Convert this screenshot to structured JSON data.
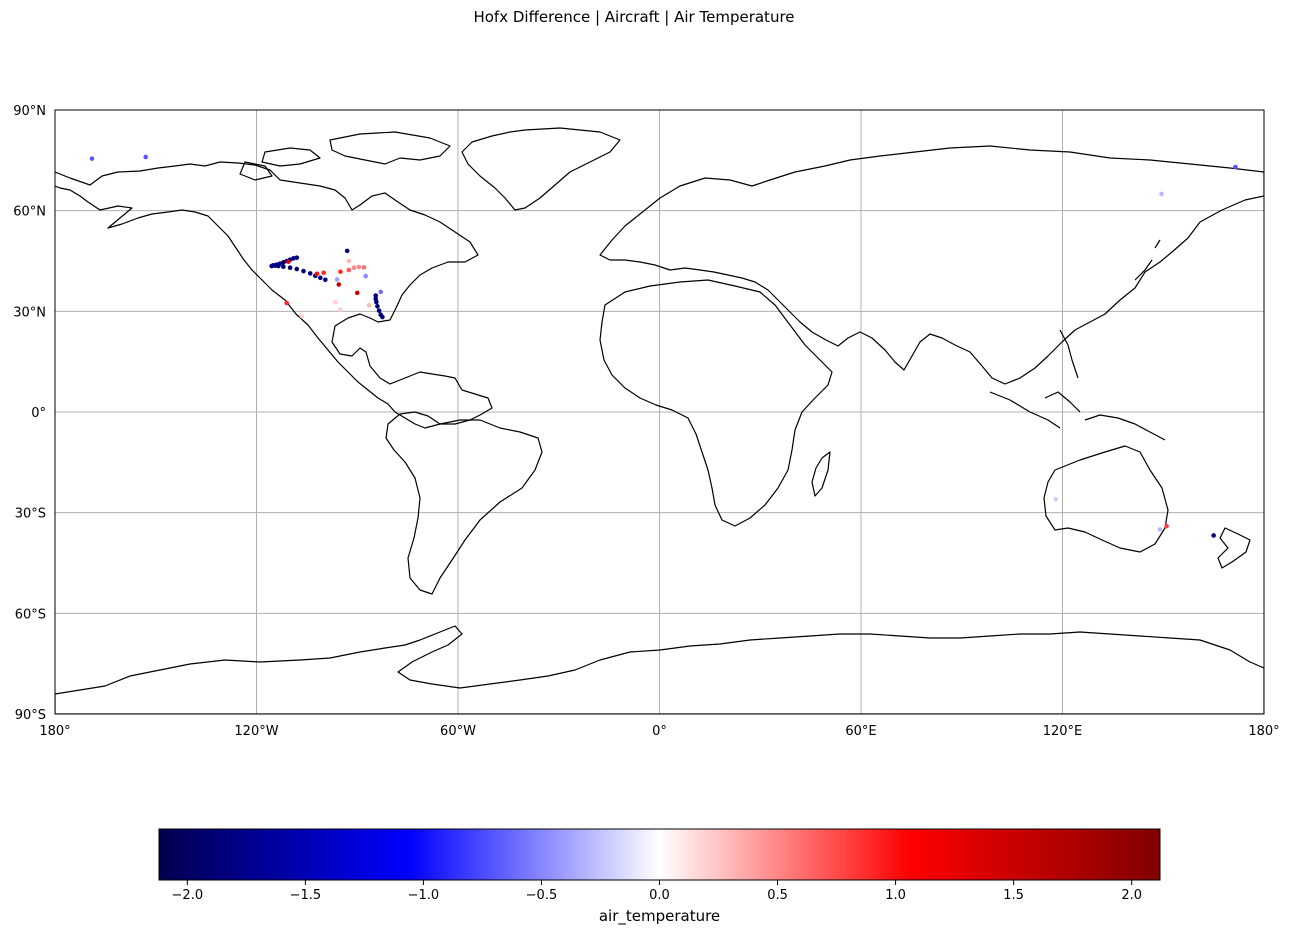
{
  "chart_data": {
    "type": "scatter",
    "title": "Hofx Difference | Aircraft | Air Temperature",
    "projection": "PlateCarree",
    "xlim": [
      -180,
      180
    ],
    "ylim": [
      -90,
      90
    ],
    "grid": true,
    "x_ticks": [
      {
        "value": -180,
        "label": "180°"
      },
      {
        "value": -120,
        "label": "120°W"
      },
      {
        "value": -60,
        "label": "60°W"
      },
      {
        "value": 0,
        "label": "0°"
      },
      {
        "value": 60,
        "label": "60°E"
      },
      {
        "value": 120,
        "label": "120°E"
      },
      {
        "value": 180,
        "label": "180°"
      }
    ],
    "y_ticks": [
      {
        "value": 90,
        "label": "90°N"
      },
      {
        "value": 60,
        "label": "60°N"
      },
      {
        "value": 30,
        "label": "30°N"
      },
      {
        "value": 0,
        "label": "0°"
      },
      {
        "value": -30,
        "label": "30°S"
      },
      {
        "value": -60,
        "label": "60°S"
      },
      {
        "value": -90,
        "label": "90°S"
      }
    ],
    "colorbar": {
      "label": "air_temperature",
      "colormap": "seismic",
      "vmin": -2.12,
      "vmax": 2.12,
      "ticks": [
        {
          "value": -2.0,
          "label": "−2.0"
        },
        {
          "value": -1.5,
          "label": "−1.5"
        },
        {
          "value": -1.0,
          "label": "−1.0"
        },
        {
          "value": -0.5,
          "label": "−0.5"
        },
        {
          "value": 0.0,
          "label": "0.0"
        },
        {
          "value": 0.5,
          "label": "0.5"
        },
        {
          "value": 1.0,
          "label": "1.0"
        },
        {
          "value": 1.5,
          "label": "1.5"
        },
        {
          "value": 2.0,
          "label": "2.0"
        }
      ]
    },
    "points": [
      {
        "lon": -169,
        "lat": 75.5,
        "v": -0.7
      },
      {
        "lon": -153,
        "lat": 76,
        "v": -0.7
      },
      {
        "lon": -115.5,
        "lat": 43.5,
        "v": -1.8
      },
      {
        "lon": -115,
        "lat": 43.7,
        "v": -1.9
      },
      {
        "lon": -114.5,
        "lat": 43.6,
        "v": -1.7
      },
      {
        "lon": -114,
        "lat": 43.9,
        "v": -1.8
      },
      {
        "lon": -113.5,
        "lat": 43.5,
        "v": -1.9
      },
      {
        "lon": -113,
        "lat": 44.2,
        "v": -1.8
      },
      {
        "lon": -112,
        "lat": 44.6,
        "v": -1.9
      },
      {
        "lon": -111,
        "lat": 45.0,
        "v": -1.7
      },
      {
        "lon": -110,
        "lat": 45.4,
        "v": -1.8
      },
      {
        "lon": -109,
        "lat": 45.8,
        "v": -1.9
      },
      {
        "lon": -108,
        "lat": 46.0,
        "v": -1.8
      },
      {
        "lon": -110.5,
        "lat": 44.8,
        "v": 1.3
      },
      {
        "lon": -112,
        "lat": 43.3,
        "v": -1.9
      },
      {
        "lon": -110,
        "lat": 43.0,
        "v": -1.9
      },
      {
        "lon": -108,
        "lat": 42.6,
        "v": -1.9
      },
      {
        "lon": -106,
        "lat": 42.0,
        "v": -1.9
      },
      {
        "lon": -104,
        "lat": 41.3,
        "v": -1.8
      },
      {
        "lon": -102.5,
        "lat": 40.6,
        "v": -1.9
      },
      {
        "lon": -101,
        "lat": 40.0,
        "v": -1.8
      },
      {
        "lon": -99.5,
        "lat": 39.4,
        "v": -1.9
      },
      {
        "lon": -102,
        "lat": 41.2,
        "v": 1.0
      },
      {
        "lon": -100,
        "lat": 41.5,
        "v": 0.9
      },
      {
        "lon": -95,
        "lat": 41.8,
        "v": 0.9
      },
      {
        "lon": -95.5,
        "lat": 38.0,
        "v": 1.5
      },
      {
        "lon": -96,
        "lat": 39.5,
        "v": -0.4
      },
      {
        "lon": -93,
        "lat": 48.0,
        "v": -1.9
      },
      {
        "lon": -92.5,
        "lat": 42.3,
        "v": 0.7
      },
      {
        "lon": -91,
        "lat": 43.0,
        "v": 0.5
      },
      {
        "lon": -89.5,
        "lat": 43.2,
        "v": 0.5
      },
      {
        "lon": -88,
        "lat": 43.1,
        "v": 0.6
      },
      {
        "lon": -92.5,
        "lat": 45.0,
        "v": 0.3
      },
      {
        "lon": -87.5,
        "lat": 40.5,
        "v": -0.5
      },
      {
        "lon": -111,
        "lat": 32.5,
        "v": 0.9
      },
      {
        "lon": -106.5,
        "lat": 28.5,
        "v": 0.2
      },
      {
        "lon": -96.5,
        "lat": 32.7,
        "v": 0.2
      },
      {
        "lon": -90,
        "lat": 35.5,
        "v": 1.5
      },
      {
        "lon": -84.5,
        "lat": 34.7,
        "v": -1.8
      },
      {
        "lon": -84.5,
        "lat": 33.7,
        "v": -1.9
      },
      {
        "lon": -84.3,
        "lat": 32.8,
        "v": -1.8
      },
      {
        "lon": -84,
        "lat": 31.5,
        "v": -1.9
      },
      {
        "lon": -83.5,
        "lat": 30.2,
        "v": -1.8
      },
      {
        "lon": -83,
        "lat": 29.0,
        "v": -1.9
      },
      {
        "lon": -82.5,
        "lat": 28.3,
        "v": -1.8
      },
      {
        "lon": -83,
        "lat": 35.8,
        "v": -0.6
      },
      {
        "lon": -95,
        "lat": 30.5,
        "v": 0.2
      },
      {
        "lon": -86.5,
        "lat": 31.8,
        "v": 0.3
      },
      {
        "lon": 149.5,
        "lat": 65,
        "v": -0.3
      },
      {
        "lon": 171.5,
        "lat": 73,
        "v": -0.7
      },
      {
        "lon": 118,
        "lat": -26,
        "v": -0.2
      },
      {
        "lon": 149,
        "lat": -35,
        "v": -0.3
      },
      {
        "lon": 151,
        "lat": -34,
        "v": 0.8
      },
      {
        "lon": 165,
        "lat": -36.8,
        "v": -1.9
      }
    ]
  }
}
